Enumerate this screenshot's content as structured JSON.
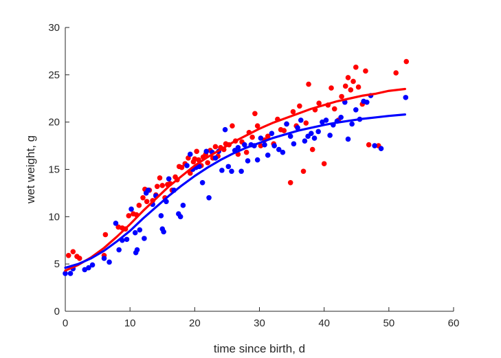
{
  "chart_data": {
    "type": "scatter",
    "title": "",
    "xlabel": "time since birth, d",
    "ylabel": "wet weight, g",
    "xlim": [
      0,
      60
    ],
    "ylim": [
      0,
      30
    ],
    "xticks": [
      "0",
      "10",
      "20",
      "30",
      "40",
      "50",
      "60"
    ],
    "yticks": [
      "0",
      "5",
      "10",
      "15",
      "20",
      "25",
      "30"
    ],
    "grid": false,
    "legend": "none",
    "series": [
      {
        "color": "#ff0000",
        "kind": "points",
        "x": [
          0.5,
          1.2,
          1.8,
          2.2,
          6.0,
          6.2,
          8.2,
          8.8,
          9.3,
          9.8,
          10.5,
          11.0,
          11.4,
          12.0,
          12.3,
          12.6,
          13.0,
          13.5,
          14.0,
          14.2,
          14.6,
          15.0,
          15.4,
          15.8,
          16.2,
          16.5,
          17.0,
          17.3,
          17.6,
          18.0,
          18.5,
          19.0,
          19.3,
          19.8,
          20.0,
          20.3,
          20.6,
          21.0,
          21.3,
          21.7,
          22.0,
          22.4,
          22.8,
          23.2,
          23.6,
          24.0,
          24.5,
          24.8,
          25.3,
          25.8,
          26.3,
          26.7,
          27.3,
          28.0,
          28.4,
          28.9,
          29.3,
          29.7,
          30.2,
          30.8,
          31.3,
          32.2,
          32.8,
          33.3,
          33.8,
          34.2,
          34.8,
          35.2,
          35.7,
          36.2,
          36.8,
          37.2,
          37.6,
          38.2,
          38.6,
          39.2,
          40.0,
          40.6,
          41.1,
          41.6,
          42.2,
          42.7,
          43.3,
          43.7,
          44.1,
          44.5,
          44.9,
          45.3,
          45.9,
          46.4,
          46.9,
          48.4,
          51.1,
          52.7
        ],
        "y": [
          5.9,
          6.3,
          5.8,
          5.6,
          5.9,
          8.1,
          8.9,
          8.8,
          8.7,
          10.1,
          10.3,
          10.2,
          11.2,
          12.0,
          12.9,
          11.6,
          12.8,
          11.7,
          12.3,
          13.2,
          14.1,
          13.3,
          12.0,
          13.4,
          13.5,
          12.8,
          14.2,
          13.9,
          15.3,
          15.2,
          15.6,
          16.2,
          14.6,
          15.8,
          16.1,
          16.9,
          16.0,
          15.4,
          16.3,
          16.6,
          15.7,
          17.0,
          16.2,
          17.4,
          16.4,
          17.3,
          17.1,
          17.7,
          17.6,
          19.6,
          18.0,
          16.6,
          17.9,
          16.8,
          18.9,
          18.4,
          20.9,
          19.6,
          17.5,
          18.1,
          18.5,
          17.7,
          20.3,
          19.2,
          19.1,
          19.8,
          13.6,
          21.1,
          19.6,
          21.7,
          14.8,
          19.9,
          24.0,
          17.1,
          21.3,
          22.0,
          15.6,
          21.8,
          23.6,
          21.4,
          20.2,
          22.7,
          23.8,
          24.7,
          23.4,
          24.3,
          25.8,
          23.7,
          21.9,
          25.4,
          17.6,
          17.5,
          25.2,
          26.4
        ]
      },
      {
        "color": "#0000ff",
        "kind": "points",
        "x": [
          0.0,
          0.8,
          1.2,
          3.0,
          3.6,
          4.2,
          6.0,
          6.8,
          7.8,
          8.3,
          8.8,
          9.5,
          10.2,
          10.8,
          10.9,
          11.1,
          11.5,
          12.2,
          12.5,
          12.8,
          13.5,
          14.0,
          14.8,
          15.0,
          15.2,
          15.6,
          16.0,
          16.8,
          17.5,
          17.8,
          18.2,
          18.8,
          19.3,
          19.7,
          20.2,
          20.7,
          21.2,
          21.8,
          22.2,
          22.7,
          23.2,
          23.7,
          24.2,
          24.7,
          25.2,
          25.7,
          26.2,
          26.7,
          27.2,
          27.7,
          28.2,
          28.7,
          29.2,
          29.7,
          30.2,
          30.8,
          31.3,
          31.9,
          32.3,
          33.0,
          33.6,
          34.2,
          34.8,
          35.3,
          35.9,
          36.4,
          37.0,
          37.5,
          38.0,
          38.5,
          39.1,
          39.7,
          40.3,
          40.9,
          41.4,
          42.0,
          42.6,
          43.2,
          43.7,
          44.3,
          44.9,
          45.5,
          46.1,
          46.6,
          47.2,
          47.8,
          48.8,
          52.6
        ],
        "y": [
          4.0,
          4.0,
          4.5,
          4.4,
          4.6,
          4.9,
          5.6,
          5.2,
          9.3,
          6.5,
          7.5,
          7.6,
          10.8,
          8.3,
          6.2,
          6.5,
          8.6,
          7.7,
          12.5,
          12.8,
          11.3,
          12.2,
          10.1,
          8.7,
          8.4,
          11.6,
          14.0,
          12.8,
          10.3,
          10.0,
          11.2,
          15.4,
          16.6,
          15.0,
          15.2,
          15.3,
          13.6,
          16.9,
          12.0,
          16.8,
          16.2,
          16.9,
          14.9,
          19.2,
          15.3,
          14.8,
          17.0,
          17.3,
          14.8,
          17.6,
          15.9,
          17.6,
          17.5,
          16.0,
          18.3,
          17.6,
          16.5,
          18.8,
          17.5,
          17.1,
          16.8,
          19.8,
          18.5,
          17.7,
          19.4,
          20.2,
          18.0,
          18.5,
          18.8,
          18.3,
          19.0,
          20.0,
          20.2,
          18.6,
          19.7,
          20.1,
          20.5,
          22.1,
          18.2,
          19.8,
          21.3,
          20.3,
          22.2,
          22.1,
          22.8,
          17.5,
          17.2,
          22.6
        ]
      },
      {
        "color": "#ff0000",
        "kind": "line",
        "x": [
          0,
          2,
          4,
          6,
          8,
          10,
          12,
          14,
          16,
          18,
          20,
          22,
          24,
          26,
          28,
          30,
          32,
          34,
          36,
          38,
          40,
          42,
          44,
          46,
          48,
          50,
          52.5
        ],
        "y": [
          4.3,
          4.9,
          5.7,
          6.7,
          7.9,
          9.2,
          10.6,
          11.9,
          13.2,
          14.3,
          15.4,
          16.3,
          17.1,
          17.9,
          18.6,
          19.3,
          19.9,
          20.4,
          20.9,
          21.4,
          21.8,
          22.2,
          22.5,
          22.8,
          23.0,
          23.3,
          23.5
        ]
      },
      {
        "color": "#0000ff",
        "kind": "line",
        "x": [
          0,
          2,
          4,
          6,
          8,
          10,
          12,
          14,
          16,
          18,
          20,
          22,
          24,
          26,
          28,
          30,
          32,
          34,
          36,
          38,
          40,
          42,
          44,
          46,
          48,
          50,
          52.5
        ],
        "y": [
          4.6,
          5.0,
          5.6,
          6.4,
          7.4,
          8.5,
          9.8,
          11.0,
          12.2,
          13.3,
          14.3,
          15.2,
          16.0,
          16.7,
          17.3,
          17.8,
          18.3,
          18.7,
          19.1,
          19.4,
          19.7,
          19.95,
          20.15,
          20.35,
          20.5,
          20.65,
          20.8
        ]
      }
    ]
  }
}
